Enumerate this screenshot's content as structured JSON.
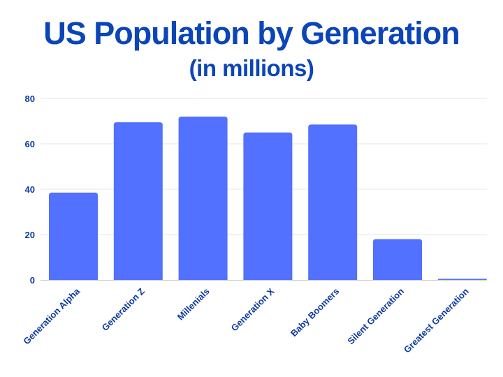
{
  "colors": {
    "title": "#0b45b8",
    "bar": "#5271ff",
    "axis_text": "#0b3aa0",
    "grid": "#e6e6e6",
    "baseline": "#cfcfcf"
  },
  "chart_data": {
    "type": "bar",
    "title": "US Population by Generation",
    "subtitle": "(in millions)",
    "xlabel": "",
    "ylabel": "",
    "ylim": [
      0,
      80
    ],
    "yticks": [
      0,
      20,
      40,
      60,
      80
    ],
    "grid": true,
    "categories": [
      "Generation Alpha",
      "Generation Z",
      "Millenials",
      "Generation X",
      "Baby Boomers",
      "Silent Generation",
      "Greatest Generation"
    ],
    "values": [
      38.5,
      69.5,
      72,
      65,
      68.5,
      18,
      0.5
    ]
  }
}
